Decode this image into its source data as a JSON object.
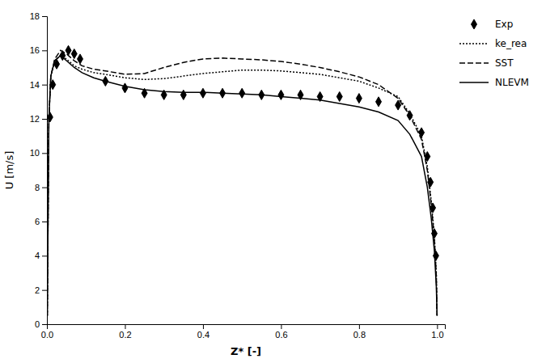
{
  "chart_data": {
    "type": "line",
    "xlabel": "Z* [-]",
    "ylabel": "U [m/s]",
    "xlim": [
      0,
      1.02
    ],
    "ylim": [
      0,
      18
    ],
    "xticks": [
      {
        "value": 0,
        "label": "0.0"
      },
      0.2,
      0.4,
      0.6,
      0.8,
      {
        "value": 1.0,
        "label": "1.0"
      }
    ],
    "yticks": [
      0,
      2,
      4,
      6,
      8,
      10,
      12,
      14,
      16,
      18
    ],
    "grid": false,
    "legend": "right",
    "color": "#000000",
    "series": [
      {
        "name": "Exp",
        "type": "scatter",
        "marker": "diamond",
        "color": "#000000",
        "x": [
          0.008,
          0.015,
          0.025,
          0.04,
          0.055,
          0.07,
          0.085,
          0.15,
          0.2,
          0.25,
          0.3,
          0.35,
          0.4,
          0.45,
          0.5,
          0.55,
          0.6,
          0.65,
          0.7,
          0.75,
          0.8,
          0.85,
          0.9,
          0.93,
          0.96,
          0.975,
          0.983,
          0.989,
          0.993,
          0.997
        ],
        "values": [
          12.1,
          14.0,
          15.2,
          15.7,
          16.0,
          15.8,
          15.5,
          14.2,
          13.8,
          13.5,
          13.4,
          13.4,
          13.5,
          13.5,
          13.5,
          13.4,
          13.4,
          13.4,
          13.3,
          13.3,
          13.2,
          13.0,
          12.8,
          12.2,
          11.2,
          9.8,
          8.3,
          6.8,
          5.3,
          4.0
        ]
      },
      {
        "name": "ke_rea",
        "type": "line",
        "line_style": "dotted",
        "color": "#000000",
        "x": [
          0.001,
          0.005,
          0.01,
          0.02,
          0.035,
          0.05,
          0.07,
          0.09,
          0.12,
          0.15,
          0.2,
          0.25,
          0.3,
          0.35,
          0.4,
          0.45,
          0.5,
          0.55,
          0.6,
          0.65,
          0.7,
          0.75,
          0.8,
          0.85,
          0.9,
          0.93,
          0.96,
          0.975,
          0.985,
          0.993,
          0.998,
          1.0
        ],
        "values": [
          0.5,
          12.0,
          14.5,
          15.4,
          15.7,
          15.5,
          15.1,
          14.9,
          14.7,
          14.6,
          14.4,
          14.3,
          14.35,
          14.5,
          14.65,
          14.75,
          14.85,
          14.85,
          14.8,
          14.7,
          14.6,
          14.4,
          14.2,
          13.8,
          13.3,
          12.3,
          11.0,
          9.2,
          7.2,
          5.2,
          3.0,
          0.5
        ]
      },
      {
        "name": "SST",
        "type": "line",
        "line_style": "dashed",
        "color": "#000000",
        "x": [
          0.001,
          0.005,
          0.01,
          0.02,
          0.035,
          0.05,
          0.07,
          0.09,
          0.12,
          0.15,
          0.2,
          0.25,
          0.3,
          0.35,
          0.4,
          0.45,
          0.5,
          0.55,
          0.6,
          0.65,
          0.7,
          0.75,
          0.8,
          0.85,
          0.9,
          0.93,
          0.96,
          0.975,
          0.985,
          0.993,
          0.998,
          1.0
        ],
        "values": [
          0.5,
          12.0,
          14.5,
          15.5,
          16.0,
          15.8,
          15.4,
          15.1,
          14.9,
          14.8,
          14.6,
          14.65,
          15.0,
          15.3,
          15.5,
          15.55,
          15.5,
          15.45,
          15.35,
          15.2,
          15.0,
          14.75,
          14.45,
          14.0,
          13.2,
          12.2,
          10.8,
          9.0,
          7.0,
          5.0,
          2.8,
          0.5
        ]
      },
      {
        "name": "NLEVM",
        "type": "line",
        "line_style": "solid",
        "color": "#000000",
        "x": [
          0.001,
          0.005,
          0.01,
          0.02,
          0.035,
          0.05,
          0.07,
          0.09,
          0.12,
          0.15,
          0.2,
          0.25,
          0.3,
          0.35,
          0.4,
          0.45,
          0.5,
          0.55,
          0.6,
          0.65,
          0.7,
          0.75,
          0.8,
          0.85,
          0.9,
          0.93,
          0.96,
          0.975,
          0.985,
          0.993,
          0.998,
          1.0
        ],
        "values": [
          0.5,
          12.0,
          14.5,
          15.4,
          15.7,
          15.4,
          15.0,
          14.7,
          14.4,
          14.2,
          13.9,
          13.7,
          13.6,
          13.55,
          13.55,
          13.5,
          13.45,
          13.4,
          13.3,
          13.2,
          13.1,
          12.9,
          12.7,
          12.4,
          11.9,
          11.1,
          9.8,
          8.0,
          6.2,
          4.3,
          2.2,
          0.5
        ]
      }
    ]
  }
}
